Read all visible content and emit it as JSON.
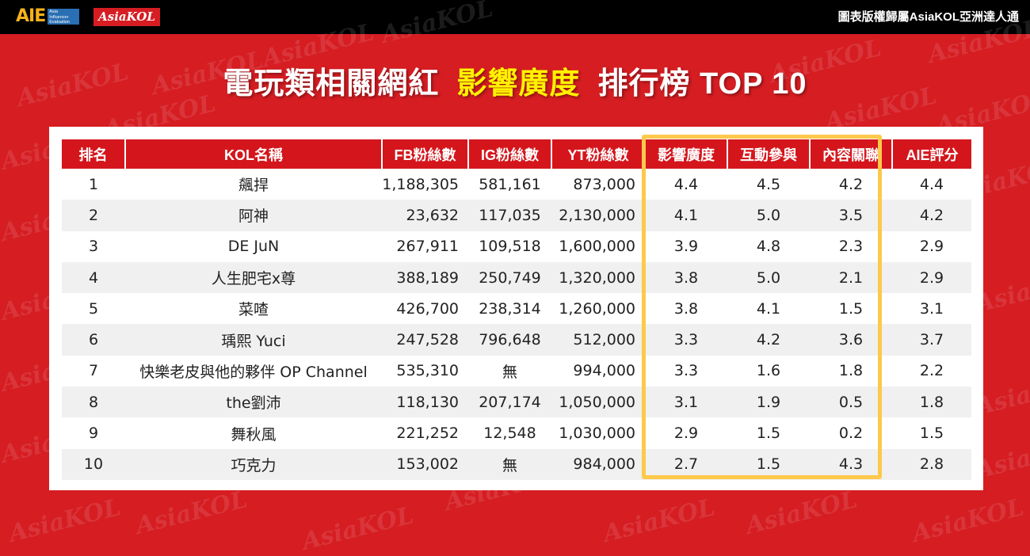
{
  "header": {
    "logo_aie": "AIE",
    "logo_aie_sub": "Asia Influencer Evaluation",
    "logo_kol": "AsiaKOL",
    "copyright": "圖表版權歸屬AsiaKOL亞洲達人通"
  },
  "watermark_text": "AsiaKOL",
  "title": {
    "part1": "電玩類相關網紅",
    "highlight": "影響廣度",
    "part2": "排行榜 TOP 10"
  },
  "colors": {
    "background": "#d51d22",
    "header_row": "#d4161c",
    "highlight": "#fff200",
    "box": "#fcc94b"
  },
  "table": {
    "headers": [
      "排名",
      "KOL名稱",
      "FB粉絲數",
      "IG粉絲數",
      "YT粉絲數",
      "影響廣度",
      "互動參與",
      "內容關聯",
      "AIE評分"
    ],
    "rows": [
      [
        "1",
        "飆捍",
        "1,188,305",
        "581,161",
        "873,000",
        "4.4",
        "4.5",
        "4.2",
        "4.4"
      ],
      [
        "2",
        "阿神",
        "23,632",
        "117,035",
        "2,130,000",
        "4.1",
        "5.0",
        "3.5",
        "4.2"
      ],
      [
        "3",
        "DE JuN",
        "267,911",
        "109,518",
        "1,600,000",
        "3.9",
        "4.8",
        "2.3",
        "2.9"
      ],
      [
        "4",
        "人生肥宅x尊",
        "388,189",
        "250,749",
        "1,320,000",
        "3.8",
        "5.0",
        "2.1",
        "2.9"
      ],
      [
        "5",
        "菜喳",
        "426,700",
        "238,314",
        "1,260,000",
        "3.8",
        "4.1",
        "1.5",
        "3.1"
      ],
      [
        "6",
        "瑀熙 Yuci",
        "247,528",
        "796,648",
        "512,000",
        "3.3",
        "4.2",
        "3.6",
        "3.7"
      ],
      [
        "7",
        "快樂老皮與他的夥伴 OP Channel",
        "535,310",
        "無",
        "994,000",
        "3.3",
        "1.6",
        "1.8",
        "2.2"
      ],
      [
        "8",
        "the劉沛",
        "118,130",
        "207,174",
        "1,050,000",
        "3.1",
        "1.9",
        "0.5",
        "1.8"
      ],
      [
        "9",
        "舞秋風",
        "221,252",
        "12,548",
        "1,030,000",
        "2.9",
        "1.5",
        "0.2",
        "1.5"
      ],
      [
        "10",
        "巧克力",
        "153,002",
        "無",
        "984,000",
        "2.7",
        "1.5",
        "4.3",
        "2.8"
      ]
    ]
  }
}
